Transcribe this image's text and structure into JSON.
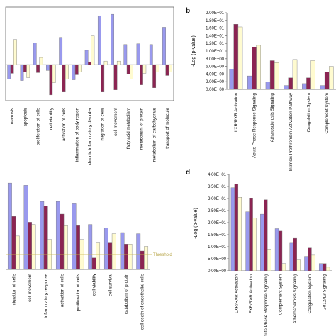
{
  "colors": {
    "c1": "#9999ee",
    "c2": "#8b2452",
    "c3": "#fffbd0",
    "outline": "#777777",
    "threshold": "#c8b44a"
  },
  "chart_data": [
    {
      "id": "a",
      "panel_label": "",
      "type": "bar",
      "categories": [
        "necrosis",
        "apoptosis",
        "proliferation of cells",
        "cell viability",
        "activation of cells",
        "inflammation of body region",
        "chronic inflammatory disorder",
        "migration of cells",
        "cell movement",
        "fatty acid metabolism",
        "metabolism of protein",
        "metabolism of carbohydrate",
        "transport of molecule"
      ],
      "series": [
        {
          "values": [
            -2.0,
            -2.2,
            3.0,
            -0.8,
            3.8,
            -2.1,
            2.0,
            6.8,
            7.0,
            2.8,
            2.9,
            2.8,
            5.2
          ]
        },
        {
          "values": [
            -1.2,
            -1.0,
            -1.1,
            -4.2,
            -3.8,
            -1.4,
            0.4,
            -3.8,
            -3.5,
            -1.3,
            -2.8,
            -3.2,
            -1.5
          ]
        },
        {
          "values": [
            3.5,
            -1.8,
            1.0,
            -2.5,
            -2.0,
            -1.0,
            4.0,
            0.5,
            0.5,
            -2.0,
            -1.2,
            -1.0,
            -1.0
          ]
        }
      ],
      "ylim": [
        -5,
        8
      ],
      "xlabel": "",
      "ylabel": ""
    },
    {
      "id": "b",
      "panel_label": "b",
      "type": "bar",
      "categories": [
        "LXR/RXR Activation",
        "Acute Phase Response Signaling",
        "Atherosclerosis Signaling",
        "Intrinsic Prothrombin Activation Pathway",
        "Coagulation System",
        "Complement System"
      ],
      "series": [
        {
          "values": [
            5.3,
            3.5,
            2.0,
            1.0,
            1.5,
            1.0
          ]
        },
        {
          "values": [
            17.0,
            11.0,
            7.5,
            3.0,
            3.0,
            4.5
          ]
        },
        {
          "values": [
            16.3,
            11.5,
            7.0,
            7.8,
            7.5,
            6.0
          ]
        }
      ],
      "ylim": [
        0,
        20
      ],
      "yticks": [
        "0.00E+00",
        "2.00E+00",
        "4.00E+00",
        "6.00E+00",
        "8.00E+00",
        "1.00E+01",
        "1.20E+01",
        "1.40E+01",
        "1.60E+01",
        "1.80E+01",
        "2.00E+01"
      ],
      "ylabel": "-Log (p-value)"
    },
    {
      "id": "c",
      "panel_label": "",
      "type": "bar",
      "categories": [
        "migration of cells",
        "cell movement",
        "inflammatory response",
        "activation of cells",
        "proliferation of cells",
        "cell viability",
        "cell survival",
        "catabolism of protein",
        "cell death of endothelial cells"
      ],
      "series": [
        {
          "values": [
            7.5,
            7.3,
            5.9,
            5.9,
            5.7,
            3.9,
            3.6,
            3.2,
            3.1
          ]
        },
        {
          "values": [
            4.6,
            4.1,
            5.5,
            4.8,
            3.8,
            1.0,
            2.3,
            2.2,
            1.6
          ]
        },
        {
          "values": [
            2.9,
            3.9,
            2.6,
            3.8,
            2.6,
            2.3,
            3.1,
            2.2,
            2.0
          ]
        }
      ],
      "ylim": [
        0,
        8
      ],
      "threshold": 1.3,
      "threshold_label": "Threshold",
      "ylabel": ""
    },
    {
      "id": "d",
      "panel_label": "d",
      "type": "bar",
      "categories": [
        "LXR/RXR Activation",
        "FXR/RXR Activation",
        "Acute Phase Response Signaling",
        "Complement System",
        "Atherosclerosis Signaling",
        "Coagulation System",
        "Gα12/13 Signaling"
      ],
      "series": [
        {
          "values": [
            34.5,
            24.5,
            23.5,
            17.5,
            11.5,
            6.0,
            3.0
          ]
        },
        {
          "values": [
            36.0,
            30.0,
            29.5,
            16.5,
            13.5,
            9.5,
            3.0
          ]
        },
        {
          "values": [
            30.5,
            22.0,
            9.0,
            3.0,
            4.5,
            6.5,
            1.5
          ]
        }
      ],
      "ylim": [
        0,
        40
      ],
      "yticks": [
        "0.00E+00",
        "5.00E+00",
        "1.00E+01",
        "1.50E+01",
        "2.00E+01",
        "2.50E+01",
        "3.00E+01",
        "3.50E+01",
        "4.00E+01"
      ],
      "ylabel": "-Log (p-value)"
    }
  ]
}
